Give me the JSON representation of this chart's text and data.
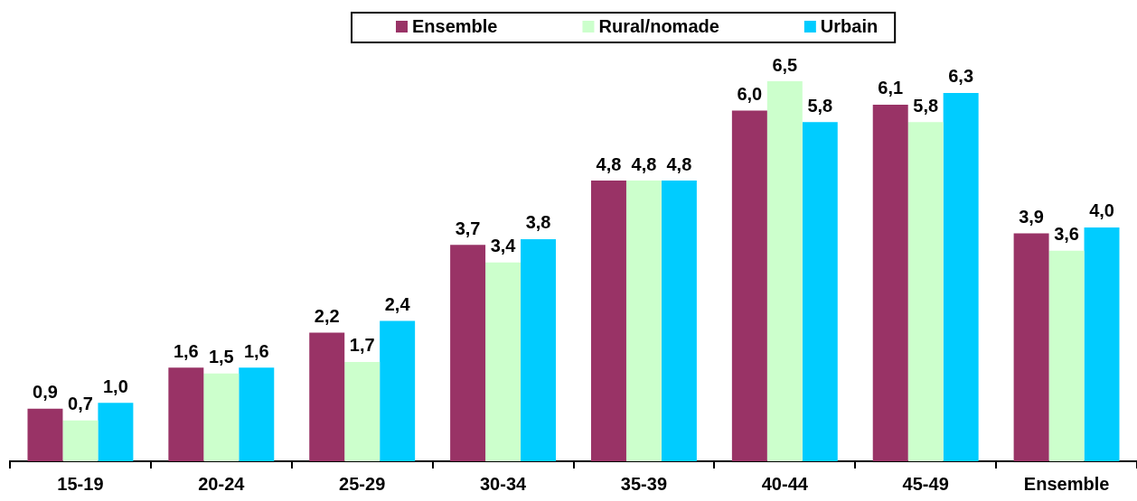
{
  "chart_data": {
    "type": "bar",
    "categories": [
      "15-19",
      "20-24",
      "25-29",
      "30-34",
      "35-39",
      "40-44",
      "45-49",
      "Ensemble"
    ],
    "series": [
      {
        "name": "Ensemble",
        "color": "#993366",
        "values": [
          0.9,
          1.6,
          2.2,
          3.7,
          4.8,
          6.0,
          6.1,
          3.9
        ],
        "value_labels": [
          "0,9",
          "1,6",
          "2,2",
          "3,7",
          "4,8",
          "6,0",
          "6,1",
          "3,9"
        ]
      },
      {
        "name": "Rural/nomade",
        "color": "#ccffcc",
        "values": [
          0.7,
          1.5,
          1.7,
          3.4,
          4.8,
          6.5,
          5.8,
          3.6
        ],
        "value_labels": [
          "0,7",
          "1,5",
          "1,7",
          "3,4",
          "4,8",
          "6,5",
          "5,8",
          "3,6"
        ]
      },
      {
        "name": "Urbain",
        "color": "#00ccff",
        "values": [
          1.0,
          1.6,
          2.4,
          3.8,
          4.8,
          5.8,
          6.3,
          4.0
        ],
        "value_labels": [
          "1,0",
          "1,6",
          "2,4",
          "3,8",
          "4,8",
          "5,8",
          "6,3",
          "4,0"
        ]
      }
    ],
    "legend": "top",
    "grid": false,
    "tick_labels": "x"
  }
}
